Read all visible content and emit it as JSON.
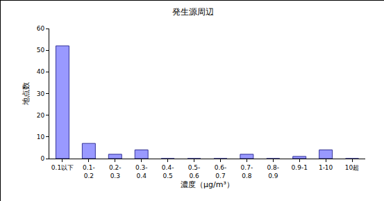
{
  "chart_data": {
    "type": "bar",
    "title": "発生源周辺",
    "x_label": "濃度（μg/m³）",
    "y_label": "地点数",
    "categories": [
      "0.1以下",
      "0.1-\n0.2",
      "0.2-\n0.3",
      "0.3-\n0.4",
      "0.4-\n0.5",
      "0.5-\n0.6",
      "0.6-\n0.7",
      "0.7-\n0.8",
      "0.8-\n0.9",
      "0.9-1",
      "1-10",
      "10超"
    ],
    "values": [
      52,
      7,
      2,
      4,
      0,
      0,
      0,
      2,
      0,
      1,
      4,
      0
    ],
    "color": "#9999ff",
    "ylim": [
      0,
      60
    ],
    "yticks": [
      0,
      10,
      20,
      30,
      40,
      50,
      60
    ],
    "grid": false
  }
}
